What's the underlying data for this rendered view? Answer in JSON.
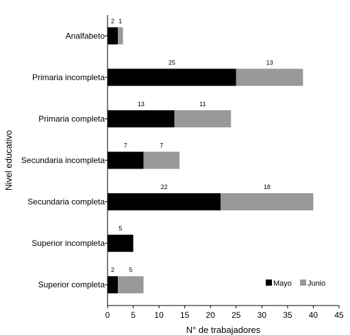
{
  "chart_data": {
    "type": "bar",
    "orientation": "horizontal",
    "stacked": true,
    "categories": [
      "Analfabeto",
      "Primaria incompleta",
      "Primaria completa",
      "Secundaria incompleta",
      "Secundaria completa",
      "Superior incompleta",
      "Superior completa"
    ],
    "series": [
      {
        "name": "Mayo",
        "color": "#000000",
        "values": [
          2,
          25,
          13,
          7,
          22,
          5,
          2
        ]
      },
      {
        "name": "Junio",
        "color": "#999999",
        "values": [
          1,
          13,
          11,
          7,
          18,
          0,
          5
        ]
      }
    ],
    "data_labels": [
      [
        "2",
        "25",
        "13",
        "7",
        "22",
        "5",
        "2"
      ],
      [
        "1",
        "13",
        "11",
        "7",
        "18",
        "",
        "5"
      ]
    ],
    "xlabel": "N° de trabajadores",
    "ylabel": "Nivel educativo",
    "xlim": [
      0,
      45
    ],
    "xticks": [
      0,
      5,
      10,
      15,
      20,
      25,
      30,
      35,
      40,
      45
    ],
    "grid": false,
    "legend_position": "bottom-right"
  }
}
